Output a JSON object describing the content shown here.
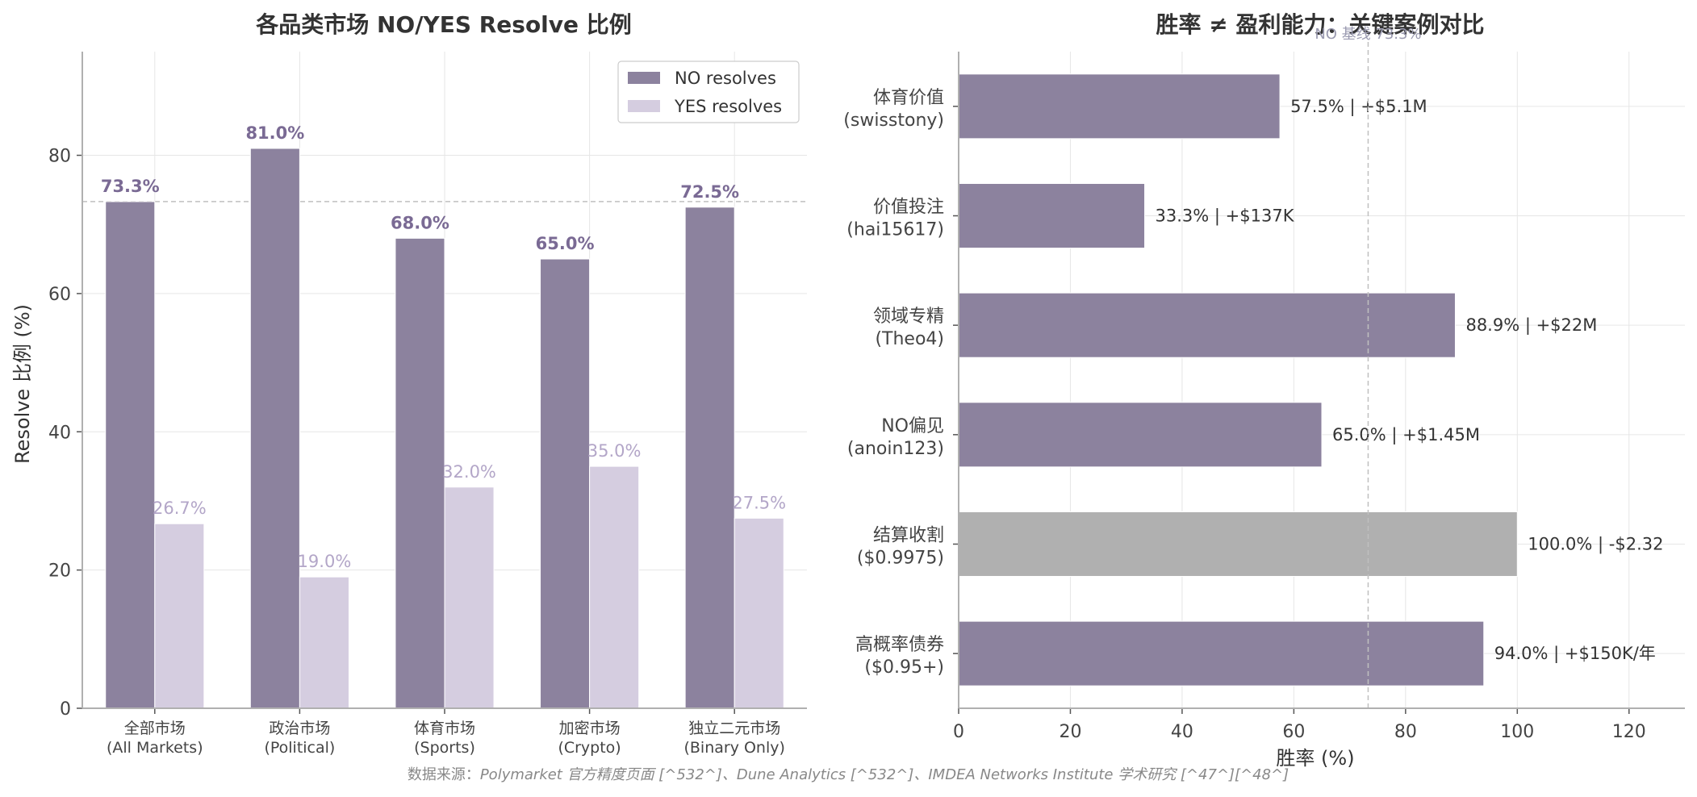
{
  "colors": {
    "no": "#8c829e",
    "yes": "#d5cde0",
    "no_label": "#7a6a94",
    "yes_label": "#b3a6c8",
    "gray_bar": "#b0b0b0",
    "refline": "#c0c0c0"
  },
  "chart_data": [
    {
      "type": "bar",
      "title": "各品类市场 NO/YES Resolve 比例",
      "ylabel": "Resolve 比例 (%)",
      "xlabel": "",
      "ylim": [
        0,
        95
      ],
      "yticks": [
        0,
        20,
        40,
        60,
        80
      ],
      "grid": true,
      "legend_position": "top-right",
      "categories": [
        [
          "全部市场",
          "(All Markets)"
        ],
        [
          "政治市场",
          "(Political)"
        ],
        [
          "体育市场",
          "(Sports)"
        ],
        [
          "加密市场",
          "(Crypto)"
        ],
        [
          "独立二元市场",
          "(Binary Only)"
        ]
      ],
      "series": [
        {
          "name": "NO resolves",
          "values": [
            73.3,
            81.0,
            68.0,
            65.0,
            72.5
          ],
          "labels": [
            "73.3%",
            "81.0%",
            "68.0%",
            "65.0%",
            "72.5%"
          ]
        },
        {
          "name": "YES resolves",
          "values": [
            26.7,
            19.0,
            32.0,
            35.0,
            27.5
          ],
          "labels": [
            "26.7%",
            "19.0%",
            "32.0%",
            "35.0%",
            "27.5%"
          ]
        }
      ],
      "reference_line": 73.3
    },
    {
      "type": "bar",
      "orientation": "horizontal",
      "title": "胜率 ≠ 盈利能力：关键案例对比",
      "xlabel": "胜率 (%)",
      "ylabel": "",
      "xlim": [
        0,
        130
      ],
      "xticks": [
        0,
        20,
        40,
        60,
        80,
        100,
        120
      ],
      "grid": true,
      "reference_line": 73.3,
      "reference_label": "NO 基线 73.3%",
      "categories": [
        [
          "体育价值",
          "(swisstony)"
        ],
        [
          "价值投注",
          "(hai15617)"
        ],
        [
          "领域专精",
          "(Theo4)"
        ],
        [
          "NO偏见",
          "(anoin123)"
        ],
        [
          "结算收割",
          "($0.9975)"
        ],
        [
          "高概率债券",
          "($0.95+)"
        ]
      ],
      "values": [
        57.5,
        33.3,
        88.9,
        65.0,
        100.0,
        94.0
      ],
      "highlight": [
        false,
        false,
        false,
        false,
        true,
        false
      ],
      "labels": [
        "57.5%  |  +$5.1M",
        "33.3%  |  +$137K",
        "88.9%  |  +$22M",
        "65.0%  |  +$1.45M",
        "100.0%  |  -$2.32",
        "94.0%  |  +$150K/年"
      ]
    }
  ],
  "footnote": {
    "prefix": "数据来源：",
    "text": "Polymarket 官方精度页面 [^532^]、Dune Analytics [^532^]、IMDEA Networks Institute 学术研究 [^47^][^48^]"
  }
}
